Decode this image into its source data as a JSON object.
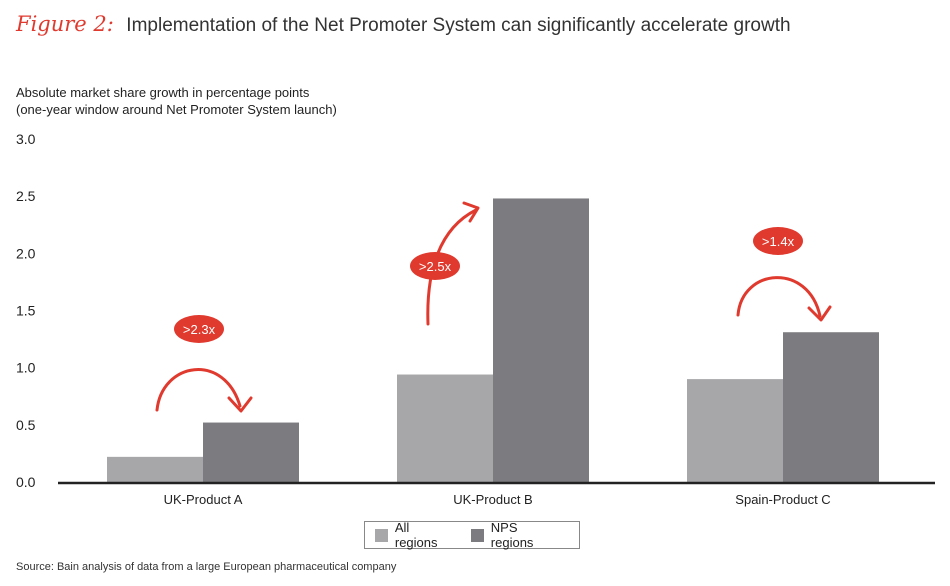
{
  "figure": {
    "label": "Figure 2:",
    "title": "Implementation of the Net Promoter System can significantly accelerate growth"
  },
  "colors": {
    "all_regions": "#a7a7aa",
    "nps_regions": "#7c7c80",
    "accent": "#e03a2f",
    "axis": "#222222"
  },
  "chart_data": {
    "type": "bar",
    "title": "Implementation of the Net Promoter System can significantly accelerate growth",
    "ylabel": "Absolute market share growth in percentage points",
    "ylabel_sub": "(one-year window around Net Promoter System launch)",
    "xlabel": "",
    "ylim": [
      0,
      3.0
    ],
    "yticks": [
      "3.0",
      "2.5",
      "2.0",
      "1.5",
      "1.0",
      "0.5",
      "0.0"
    ],
    "categories": [
      "UK-Product A",
      "UK-Product B",
      "Spain-Product C"
    ],
    "series": [
      {
        "name": "All regions",
        "values": [
          0.22,
          0.94,
          0.9
        ]
      },
      {
        "name": "NPS regions",
        "values": [
          0.52,
          2.48,
          1.31
        ]
      }
    ],
    "annotations": [
      ">2.3x",
      ">2.5x",
      ">1.4x"
    ],
    "grid": false,
    "legend": "bottom-center"
  },
  "source": "Source: Bain analysis of data from a large European pharmaceutical company"
}
